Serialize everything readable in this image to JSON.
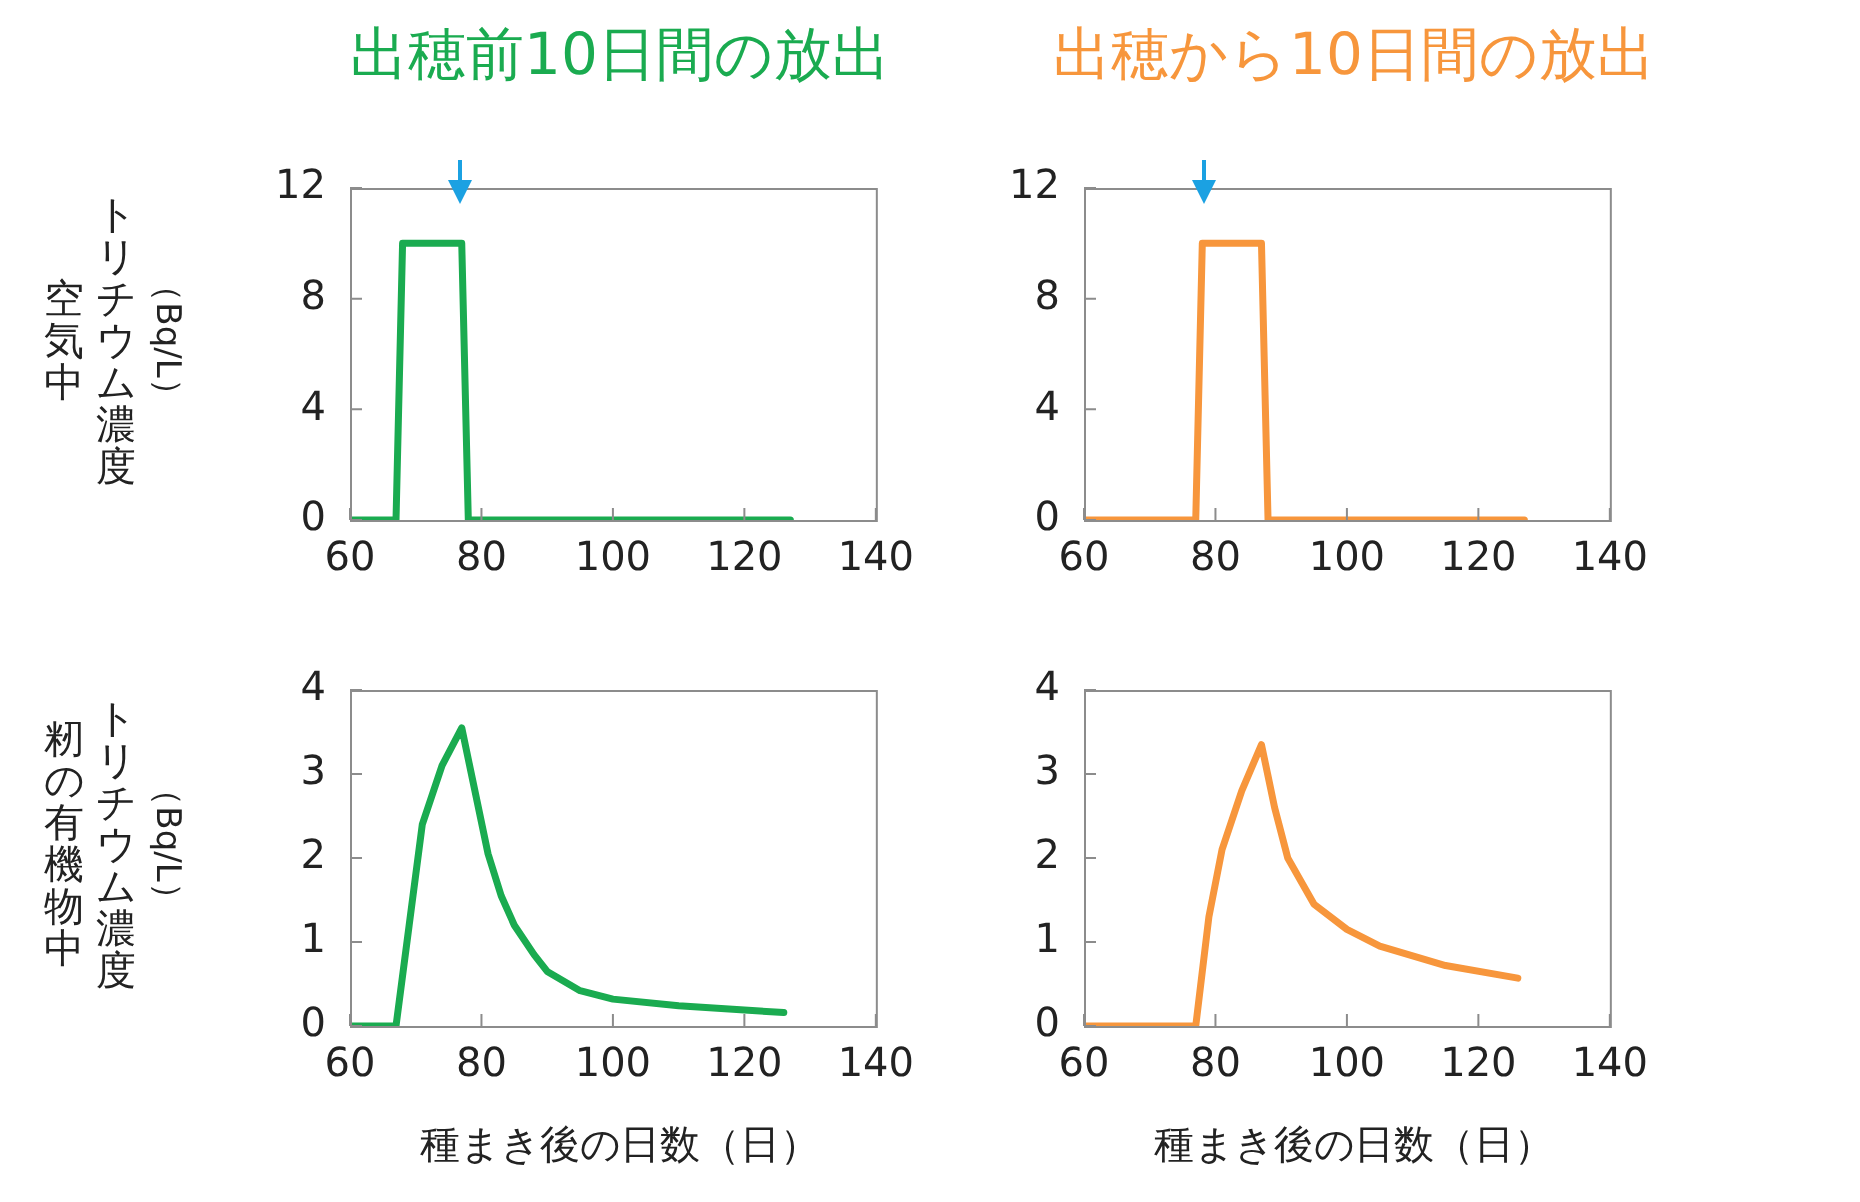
{
  "chart_data": [
    {
      "type": "line",
      "title": "出穂前10日間の放出",
      "ylabel": "空気中トリチウム濃度（Bq/L）",
      "x": [
        60,
        67,
        68,
        77,
        78,
        127
      ],
      "values": [
        0,
        0,
        10,
        10,
        0,
        0
      ],
      "color": "#1aab50",
      "marker": "none",
      "xlim": [
        60,
        140
      ],
      "ylim": [
        0,
        12
      ],
      "xticks": [
        60,
        80,
        100,
        120,
        140
      ],
      "yticks": [
        0,
        4,
        8,
        12
      ]
    },
    {
      "type": "line",
      "title": "出穂から10日間の放出",
      "x": [
        60,
        77,
        78,
        87,
        88,
        127
      ],
      "values": [
        0,
        0,
        10,
        10,
        0,
        0
      ],
      "color": "#f7963c",
      "marker": "none",
      "xlim": [
        60,
        140
      ],
      "ylim": [
        0,
        12
      ],
      "xticks": [
        60,
        80,
        100,
        120,
        140
      ],
      "yticks": [
        0,
        4,
        8,
        12
      ]
    },
    {
      "type": "line",
      "ylabel": "籾の有機物中トリチウム濃度（Bq/L）",
      "xlabel": "種まき後の日数（日）",
      "x": [
        60,
        67,
        69,
        71,
        74,
        77,
        79,
        81,
        83,
        85,
        88,
        90,
        95,
        100,
        110,
        120,
        126
      ],
      "values": [
        0,
        0,
        1.2,
        2.4,
        3.1,
        3.55,
        2.8,
        2.05,
        1.55,
        1.2,
        0.85,
        0.65,
        0.42,
        0.32,
        0.24,
        0.19,
        0.16
      ],
      "color": "#1aab50",
      "marker": "none",
      "xlim": [
        60,
        140
      ],
      "ylim": [
        0,
        4
      ],
      "xticks": [
        60,
        80,
        100,
        120,
        140
      ],
      "yticks": [
        0,
        1,
        2,
        3,
        4
      ]
    },
    {
      "type": "line",
      "xlabel": "種まき後の日数（日）",
      "x": [
        60,
        77,
        79,
        81,
        84,
        87,
        89,
        91,
        95,
        100,
        105,
        115,
        126
      ],
      "values": [
        0,
        0,
        1.3,
        2.1,
        2.8,
        3.35,
        2.6,
        2.0,
        1.45,
        1.15,
        0.95,
        0.72,
        0.57
      ],
      "color": "#f7963c",
      "marker": "none",
      "xlim": [
        60,
        140
      ],
      "ylim": [
        0,
        4
      ],
      "xticks": [
        60,
        80,
        100,
        120,
        140
      ],
      "yticks": [
        0,
        1,
        2,
        3,
        4
      ]
    }
  ]
}
